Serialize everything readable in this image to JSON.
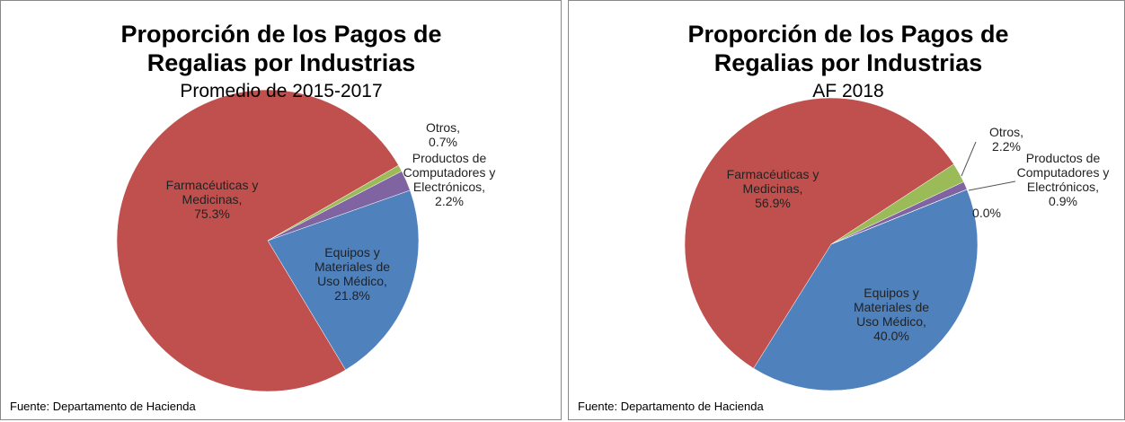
{
  "chart_data": [
    {
      "type": "pie",
      "title": "Proporción de los Pagos de Regalias por Industrias",
      "subtitle": "Promedio de 2015-2017",
      "source": "Fuente: Departamento de Hacienda",
      "categories": [
        "Equipos y Materiales de Uso Médico,",
        "Farmacéuticas y Medicinas,",
        "Otros,",
        "Productos de Computadores y Electrónicos,"
      ],
      "values": [
        21.8,
        75.3,
        0.7,
        2.2
      ],
      "value_labels": [
        "21.8%",
        "75.3%",
        "0.7%",
        "2.2%"
      ],
      "colors": [
        "#4f81bd",
        "#c0504d",
        "#9bbb59",
        "#8064a2"
      ]
    },
    {
      "type": "pie",
      "title": "Proporción de los Pagos de Regalias por Industrias",
      "subtitle": "AF 2018",
      "source": "Fuente: Departamento de Hacienda",
      "categories": [
        "Equipos y Materiales de Uso Médico,",
        "Farmacéuticas y Medicinas,",
        "Otros,",
        "Productos de Computadores y Electrónicos,",
        null
      ],
      "values": [
        40.0,
        56.9,
        2.2,
        0.9,
        0
      ],
      "value_labels": [
        "40.0%",
        "56.9%",
        "2.2%",
        "0.9%",
        "0.0%"
      ],
      "colors": [
        "#4f81bd",
        "#c0504d",
        "#9bbb59",
        "#8064a2",
        "#4bacc6"
      ]
    }
  ]
}
